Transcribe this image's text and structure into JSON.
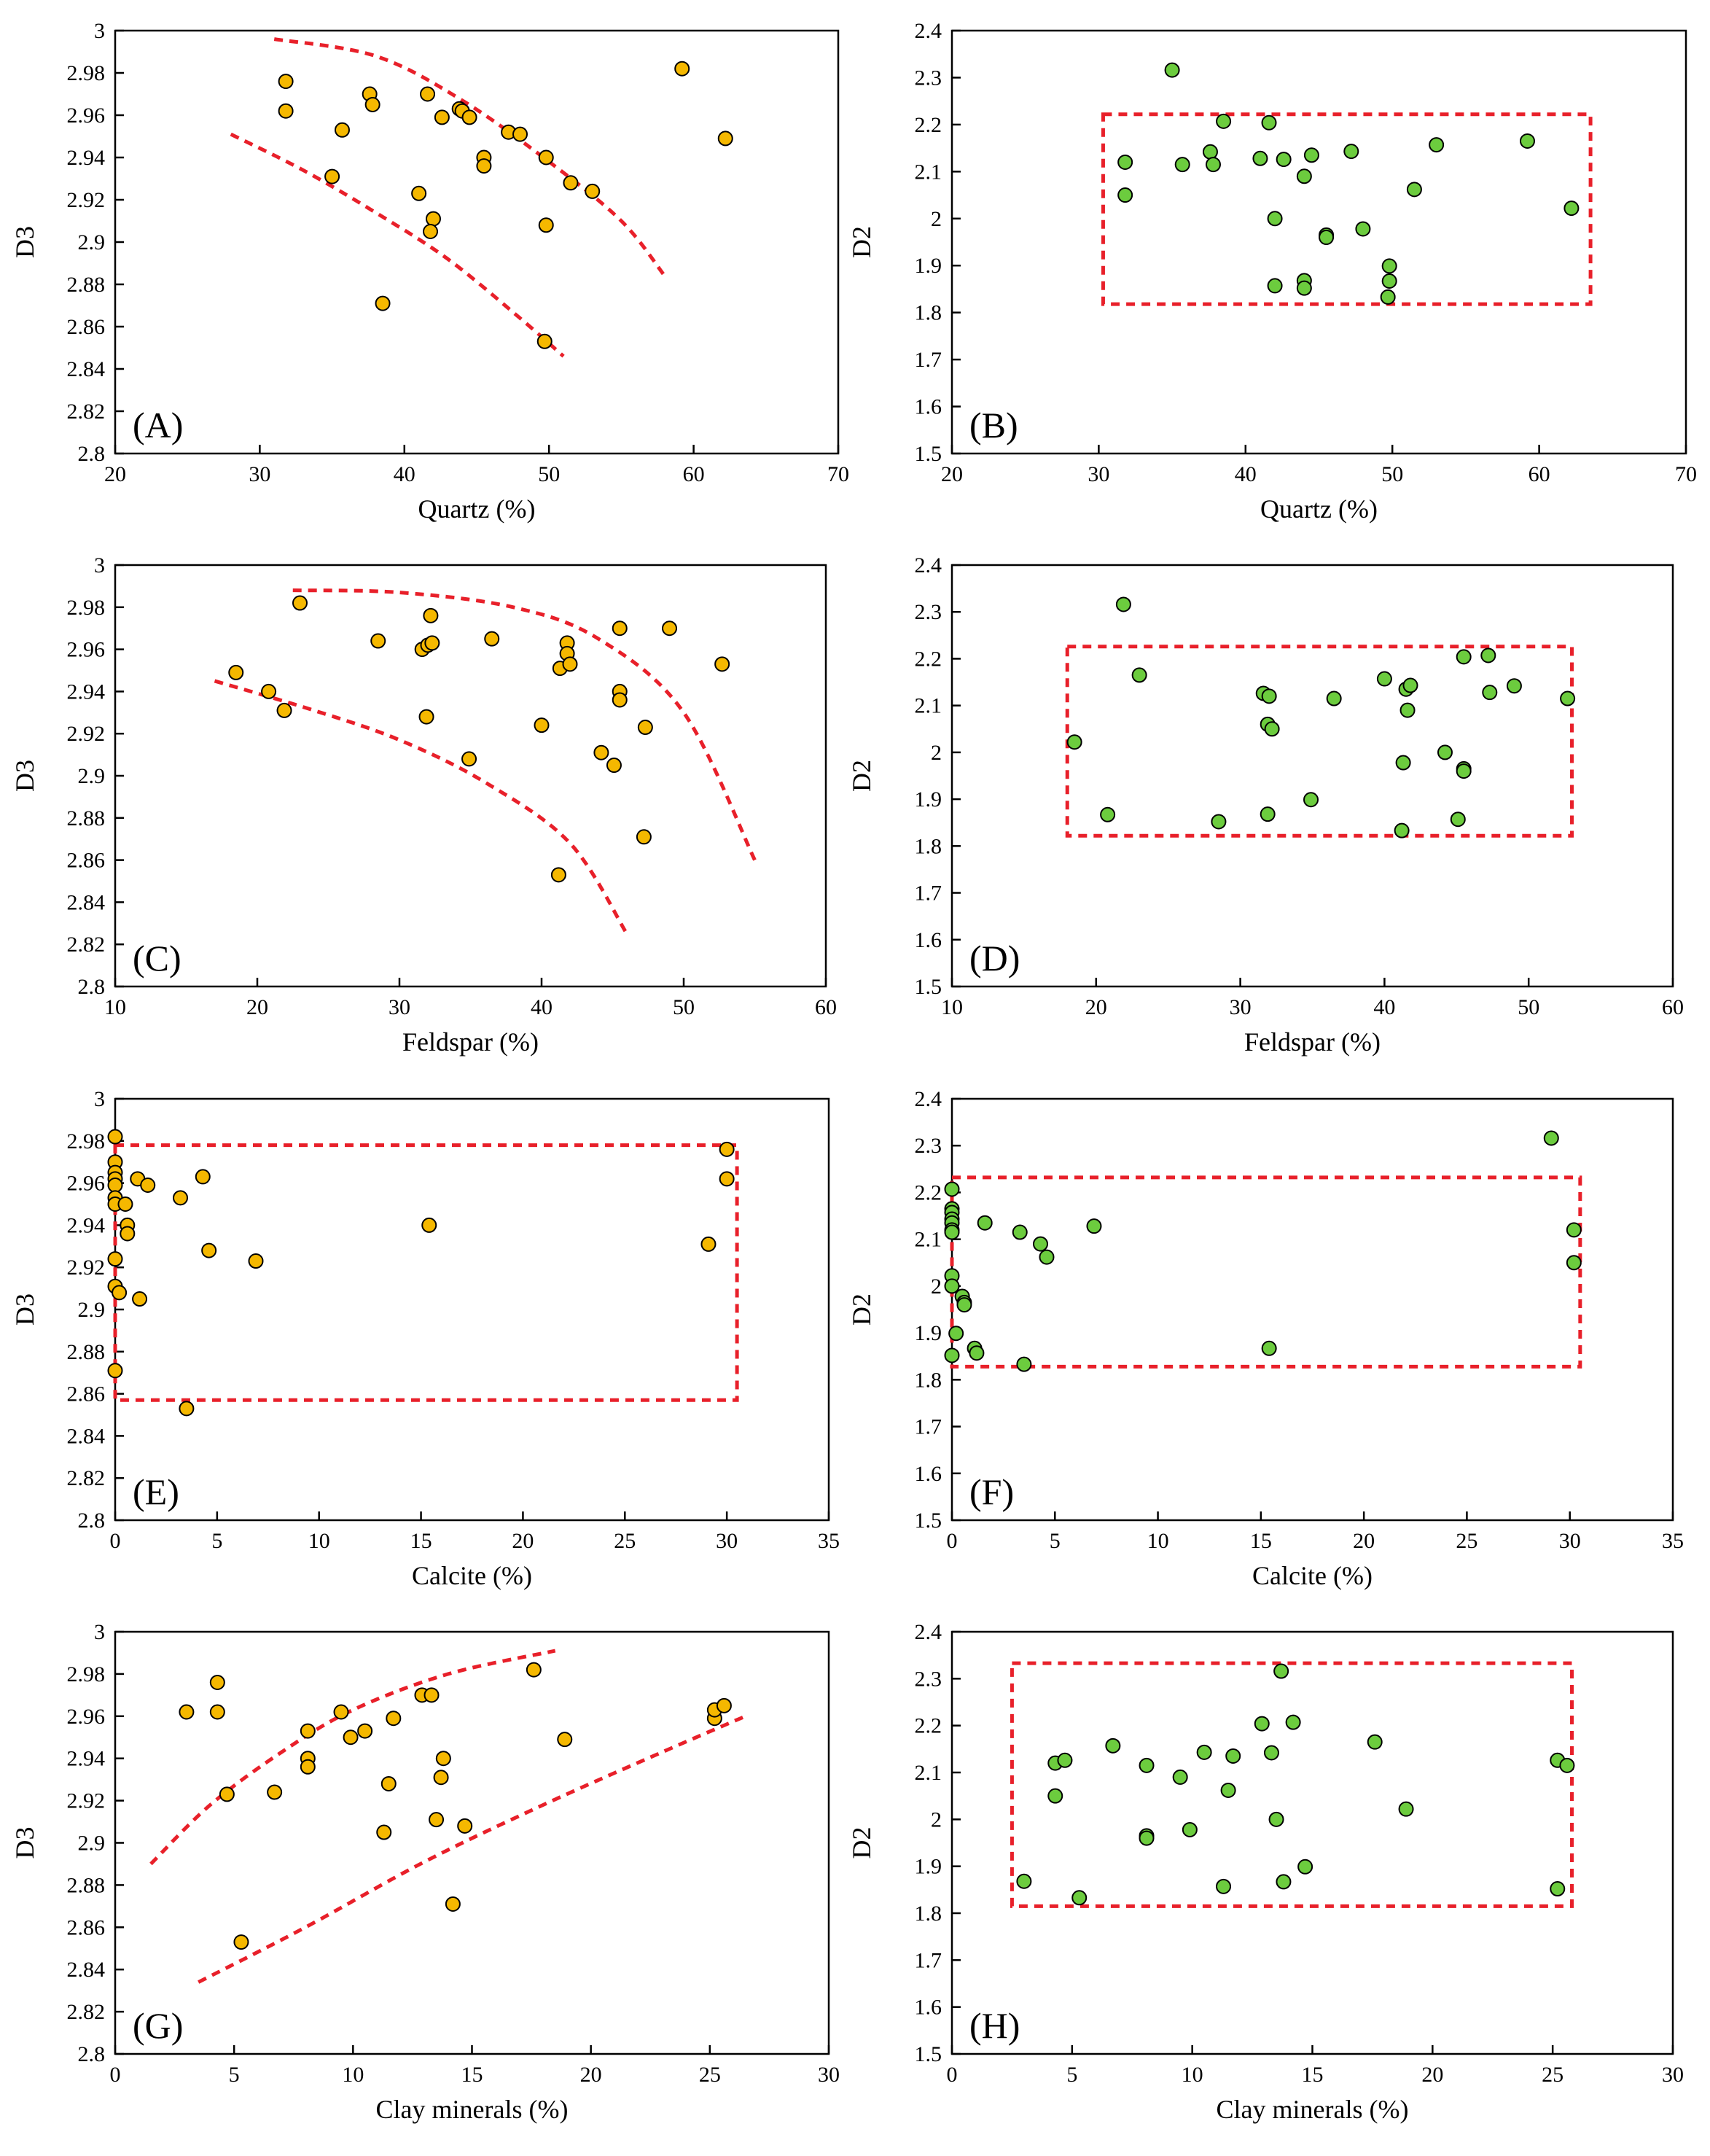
{
  "colors": {
    "yellow_point": "#f5b800",
    "green_point": "#6ccc3e",
    "guide_line": "#e8202a",
    "axis": "#000000"
  },
  "chart_data": [
    {
      "type": "scatter",
      "panel_label": "(A)",
      "xlabel": "Quartz (%)",
      "ylabel": "D3",
      "xlim": [
        20,
        70
      ],
      "ylim": [
        2.8,
        3.0
      ],
      "xticks": [
        "20",
        "30",
        "40",
        "50",
        "60",
        "70"
      ],
      "yticks": [
        "2.8",
        "2.82",
        "2.84",
        "2.86",
        "2.88",
        "2.9",
        "2.92",
        "2.94",
        "2.96",
        "2.98",
        "3"
      ],
      "point_color": "yellow",
      "points": [
        [
          31.8,
          2.976
        ],
        [
          31.8,
          2.962
        ],
        [
          35.7,
          2.953
        ],
        [
          35.0,
          2.931
        ],
        [
          37.6,
          2.97
        ],
        [
          37.8,
          2.965
        ],
        [
          41.6,
          2.97
        ],
        [
          42.6,
          2.959
        ],
        [
          43.8,
          2.963
        ],
        [
          44.0,
          2.962
        ],
        [
          44.5,
          2.959
        ],
        [
          47.2,
          2.952
        ],
        [
          48.0,
          2.951
        ],
        [
          45.5,
          2.94
        ],
        [
          45.5,
          2.936
        ],
        [
          49.8,
          2.94
        ],
        [
          51.5,
          2.928
        ],
        [
          53.0,
          2.924
        ],
        [
          41.0,
          2.923
        ],
        [
          42.0,
          2.911
        ],
        [
          41.8,
          2.905
        ],
        [
          49.8,
          2.908
        ],
        [
          38.5,
          2.871
        ],
        [
          49.7,
          2.853
        ],
        [
          59.2,
          2.982
        ],
        [
          62.2,
          2.949
        ]
      ],
      "guides": [
        {
          "kind": "curve",
          "points": [
            [
              31,
              2.996
            ],
            [
              38,
              2.988
            ],
            [
              44,
              2.967
            ],
            [
              50,
              2.938
            ],
            [
              55,
              2.91
            ],
            [
              58,
              2.884
            ]
          ]
        },
        {
          "kind": "curve",
          "points": [
            [
              28,
              2.951
            ],
            [
              33,
              2.934
            ],
            [
              38,
              2.914
            ],
            [
              43,
              2.892
            ],
            [
              48,
              2.864
            ],
            [
              51,
              2.846
            ]
          ]
        }
      ]
    },
    {
      "type": "scatter",
      "panel_label": "(B)",
      "xlabel": "Quartz (%)",
      "ylabel": "D2",
      "xlim": [
        20,
        70
      ],
      "ylim": [
        1.5,
        2.4
      ],
      "xticks": [
        "20",
        "30",
        "40",
        "50",
        "60",
        "70"
      ],
      "yticks": [
        "1.5",
        "1.6",
        "1.7",
        "1.8",
        "1.9",
        "2",
        "2.1",
        "2.2",
        "2.3",
        "2.4"
      ],
      "point_color": "green",
      "points": [
        [
          35.0,
          2.316
        ],
        [
          31.8,
          2.12
        ],
        [
          31.8,
          2.05
        ],
        [
          35.7,
          2.115
        ],
        [
          37.6,
          2.142
        ],
        [
          37.8,
          2.115
        ],
        [
          38.5,
          2.207
        ],
        [
          41.0,
          2.128
        ],
        [
          41.6,
          2.204
        ],
        [
          42.0,
          2.0
        ],
        [
          42.6,
          2.126
        ],
        [
          44.0,
          2.09
        ],
        [
          44.5,
          2.135
        ],
        [
          47.2,
          2.143
        ],
        [
          45.5,
          1.965
        ],
        [
          45.5,
          1.96
        ],
        [
          48.0,
          1.978
        ],
        [
          51.5,
          2.062
        ],
        [
          53.0,
          2.157
        ],
        [
          59.2,
          2.165
        ],
        [
          62.2,
          2.022
        ],
        [
          42.0,
          1.857
        ],
        [
          44.0,
          1.868
        ],
        [
          44.0,
          1.852
        ],
        [
          49.8,
          1.899
        ],
        [
          49.8,
          1.867
        ],
        [
          49.7,
          1.833
        ]
      ],
      "guides": [
        {
          "kind": "rect",
          "x": [
            30.3,
            63.5
          ],
          "y": [
            1.818,
            2.222
          ]
        }
      ]
    },
    {
      "type": "scatter",
      "panel_label": "(C)",
      "xlabel": "Feldspar (%)",
      "ylabel": "D3",
      "xlim": [
        10,
        60
      ],
      "ylim": [
        2.8,
        3.0
      ],
      "xticks": [
        "10",
        "20",
        "30",
        "40",
        "50",
        "60"
      ],
      "yticks": [
        "2.8",
        "2.82",
        "2.84",
        "2.86",
        "2.88",
        "2.9",
        "2.92",
        "2.94",
        "2.96",
        "2.98",
        "3"
      ],
      "point_color": "yellow",
      "points": [
        [
          18.5,
          2.949
        ],
        [
          20.8,
          2.94
        ],
        [
          21.9,
          2.931
        ],
        [
          23.0,
          2.982
        ],
        [
          28.5,
          2.964
        ],
        [
          31.6,
          2.96
        ],
        [
          32.0,
          2.962
        ],
        [
          32.3,
          2.963
        ],
        [
          32.2,
          2.976
        ],
        [
          31.9,
          2.928
        ],
        [
          34.9,
          2.908
        ],
        [
          36.5,
          2.965
        ],
        [
          40.0,
          2.924
        ],
        [
          41.3,
          2.951
        ],
        [
          41.8,
          2.963
        ],
        [
          41.8,
          2.958
        ],
        [
          42.0,
          2.953
        ],
        [
          44.2,
          2.911
        ],
        [
          45.1,
          2.905
        ],
        [
          45.5,
          2.97
        ],
        [
          45.5,
          2.94
        ],
        [
          45.5,
          2.936
        ],
        [
          47.3,
          2.923
        ],
        [
          49.0,
          2.97
        ],
        [
          52.7,
          2.953
        ],
        [
          47.2,
          2.871
        ],
        [
          41.2,
          2.853
        ]
      ],
      "guides": [
        {
          "kind": "curve",
          "points": [
            [
              22.5,
              2.988
            ],
            [
              30,
              2.987
            ],
            [
              38,
              2.98
            ],
            [
              44,
              2.965
            ],
            [
              50,
              2.93
            ],
            [
              55,
              2.86
            ]
          ]
        },
        {
          "kind": "curve",
          "points": [
            [
              17,
              2.945
            ],
            [
              24,
              2.931
            ],
            [
              30,
              2.917
            ],
            [
              36,
              2.897
            ],
            [
              42,
              2.868
            ],
            [
              46,
              2.825
            ]
          ]
        }
      ]
    },
    {
      "type": "scatter",
      "panel_label": "(D)",
      "xlabel": "Feldspar (%)",
      "ylabel": "D2",
      "xlim": [
        10,
        60
      ],
      "ylim": [
        1.5,
        2.4
      ],
      "xticks": [
        "10",
        "20",
        "30",
        "40",
        "50",
        "60"
      ],
      "yticks": [
        "1.5",
        "1.6",
        "1.7",
        "1.8",
        "1.9",
        "2",
        "2.1",
        "2.2",
        "2.3",
        "2.4"
      ],
      "point_color": "green",
      "points": [
        [
          21.9,
          2.316
        ],
        [
          18.5,
          2.022
        ],
        [
          23.0,
          2.165
        ],
        [
          20.8,
          1.867
        ],
        [
          28.5,
          1.852
        ],
        [
          31.6,
          2.126
        ],
        [
          32.0,
          2.12
        ],
        [
          31.9,
          2.06
        ],
        [
          32.2,
          2.05
        ],
        [
          31.9,
          1.868
        ],
        [
          34.9,
          1.899
        ],
        [
          36.5,
          2.115
        ],
        [
          40.0,
          2.157
        ],
        [
          41.3,
          1.978
        ],
        [
          41.5,
          2.135
        ],
        [
          41.8,
          2.143
        ],
        [
          41.6,
          2.09
        ],
        [
          41.2,
          1.833
        ],
        [
          44.2,
          2.0
        ],
        [
          45.1,
          1.857
        ],
        [
          45.5,
          1.965
        ],
        [
          45.5,
          1.96
        ],
        [
          45.5,
          2.204
        ],
        [
          47.2,
          2.207
        ],
        [
          47.3,
          2.128
        ],
        [
          49.0,
          2.142
        ],
        [
          52.7,
          2.115
        ]
      ],
      "guides": [
        {
          "kind": "rect",
          "x": [
            18,
            53
          ],
          "y": [
            1.822,
            2.226
          ]
        }
      ]
    },
    {
      "type": "scatter",
      "panel_label": "(E)",
      "xlabel": "Calcite (%)",
      "ylabel": "D3",
      "xlim": [
        0,
        35
      ],
      "ylim": [
        2.8,
        3.0
      ],
      "xticks": [
        "0",
        "5",
        "10",
        "15",
        "20",
        "25",
        "30",
        "35"
      ],
      "yticks": [
        "2.8",
        "2.82",
        "2.84",
        "2.86",
        "2.88",
        "2.9",
        "2.92",
        "2.94",
        "2.96",
        "2.98",
        "3"
      ],
      "point_color": "yellow",
      "points": [
        [
          0,
          2.982
        ],
        [
          0,
          2.97
        ],
        [
          0,
          2.965
        ],
        [
          0,
          2.962
        ],
        [
          0,
          2.959
        ],
        [
          0,
          2.953
        ],
        [
          0,
          2.95
        ],
        [
          0,
          2.924
        ],
        [
          0,
          2.911
        ],
        [
          0,
          2.871
        ],
        [
          0.2,
          2.908
        ],
        [
          0.5,
          2.95
        ],
        [
          0.6,
          2.94
        ],
        [
          0.6,
          2.936
        ],
        [
          1.1,
          2.962
        ],
        [
          1.2,
          2.905
        ],
        [
          1.6,
          2.959
        ],
        [
          3.2,
          2.953
        ],
        [
          4.3,
          2.963
        ],
        [
          4.6,
          2.928
        ],
        [
          6.9,
          2.923
        ],
        [
          15.4,
          2.94
        ],
        [
          29.1,
          2.931
        ],
        [
          30.0,
          2.976
        ],
        [
          30.0,
          2.962
        ],
        [
          3.5,
          2.853
        ]
      ],
      "guides": [
        {
          "kind": "rect",
          "x": [
            0,
            30.5
          ],
          "y": [
            2.857,
            2.978
          ]
        }
      ]
    },
    {
      "type": "scatter",
      "panel_label": "(F)",
      "xlabel": "Calcite (%)",
      "ylabel": "D2",
      "xlim": [
        0,
        35
      ],
      "ylim": [
        1.5,
        2.4
      ],
      "xticks": [
        "0",
        "5",
        "10",
        "15",
        "20",
        "25",
        "30",
        "35"
      ],
      "yticks": [
        "1.5",
        "1.6",
        "1.7",
        "1.8",
        "1.9",
        "2",
        "2.1",
        "2.2",
        "2.3",
        "2.4"
      ],
      "point_color": "green",
      "points": [
        [
          0,
          2.207
        ],
        [
          0,
          2.165
        ],
        [
          0,
          2.157
        ],
        [
          0,
          2.143
        ],
        [
          0,
          2.135
        ],
        [
          0,
          2.12
        ],
        [
          0,
          2.115
        ],
        [
          0,
          2.022
        ],
        [
          0,
          2.0
        ],
        [
          0,
          1.852
        ],
        [
          0.2,
          1.899
        ],
        [
          0.5,
          1.978
        ],
        [
          0.6,
          1.965
        ],
        [
          0.6,
          1.96
        ],
        [
          1.1,
          1.867
        ],
        [
          1.2,
          1.857
        ],
        [
          1.6,
          2.135
        ],
        [
          3.3,
          2.115
        ],
        [
          3.5,
          1.833
        ],
        [
          4.3,
          2.09
        ],
        [
          4.6,
          2.062
        ],
        [
          6.9,
          2.128
        ],
        [
          15.4,
          1.867
        ],
        [
          29.1,
          2.316
        ],
        [
          30.2,
          2.12
        ],
        [
          30.2,
          2.05
        ]
      ],
      "guides": [
        {
          "kind": "rect",
          "x": [
            0,
            30.5
          ],
          "y": [
            1.828,
            2.232
          ]
        }
      ]
    },
    {
      "type": "scatter",
      "panel_label": "(G)",
      "xlabel": "Clay minerals (%)",
      "ylabel": "D3",
      "xlim": [
        0,
        30
      ],
      "ylim": [
        2.8,
        3.0
      ],
      "xticks": [
        "0",
        "5",
        "10",
        "15",
        "20",
        "25",
        "30"
      ],
      "yticks": [
        "2.8",
        "2.82",
        "2.84",
        "2.86",
        "2.88",
        "2.9",
        "2.92",
        "2.94",
        "2.96",
        "2.98",
        "3"
      ],
      "point_color": "yellow",
      "points": [
        [
          3.0,
          2.962
        ],
        [
          4.3,
          2.976
        ],
        [
          4.3,
          2.962
        ],
        [
          4.7,
          2.923
        ],
        [
          5.3,
          2.853
        ],
        [
          6.7,
          2.924
        ],
        [
          8.1,
          2.953
        ],
        [
          8.1,
          2.94
        ],
        [
          8.1,
          2.936
        ],
        [
          9.5,
          2.962
        ],
        [
          9.9,
          2.95
        ],
        [
          10.5,
          2.953
        ],
        [
          11.3,
          2.905
        ],
        [
          11.5,
          2.928
        ],
        [
          11.7,
          2.959
        ],
        [
          12.9,
          2.97
        ],
        [
          13.3,
          2.97
        ],
        [
          13.5,
          2.911
        ],
        [
          13.7,
          2.931
        ],
        [
          13.8,
          2.94
        ],
        [
          14.2,
          2.871
        ],
        [
          14.7,
          2.908
        ],
        [
          17.6,
          2.982
        ],
        [
          18.9,
          2.949
        ],
        [
          25.2,
          2.959
        ],
        [
          25.2,
          2.963
        ],
        [
          25.6,
          2.965
        ]
      ],
      "guides": [
        {
          "kind": "curve",
          "points": [
            [
              1.5,
              2.89
            ],
            [
              4,
              2.918
            ],
            [
              7,
              2.943
            ],
            [
              10,
              2.963
            ],
            [
              14,
              2.98
            ],
            [
              18.5,
              2.991
            ]
          ]
        },
        {
          "kind": "curve",
          "points": [
            [
              3.5,
              2.834
            ],
            [
              8,
              2.86
            ],
            [
              13,
              2.891
            ],
            [
              18,
              2.918
            ],
            [
              23,
              2.943
            ],
            [
              26.5,
              2.96
            ]
          ]
        }
      ]
    },
    {
      "type": "scatter",
      "panel_label": "(H)",
      "xlabel": "Clay minerals (%)",
      "ylabel": "D2",
      "xlim": [
        0,
        30
      ],
      "ylim": [
        1.5,
        2.4
      ],
      "xticks": [
        "0",
        "5",
        "10",
        "15",
        "20",
        "25",
        "30"
      ],
      "yticks": [
        "1.5",
        "1.6",
        "1.7",
        "1.8",
        "1.9",
        "2",
        "2.1",
        "2.2",
        "2.3",
        "2.4"
      ],
      "point_color": "green",
      "points": [
        [
          3.0,
          1.868
        ],
        [
          4.3,
          2.12
        ],
        [
          4.3,
          2.05
        ],
        [
          4.7,
          2.126
        ],
        [
          5.3,
          1.833
        ],
        [
          6.7,
          2.157
        ],
        [
          8.1,
          2.115
        ],
        [
          8.1,
          1.965
        ],
        [
          8.1,
          1.96
        ],
        [
          9.5,
          2.09
        ],
        [
          9.9,
          1.978
        ],
        [
          10.5,
          2.143
        ],
        [
          11.3,
          1.857
        ],
        [
          11.5,
          2.062
        ],
        [
          11.7,
          2.135
        ],
        [
          12.9,
          2.204
        ],
        [
          13.3,
          2.142
        ],
        [
          13.5,
          2.0
        ],
        [
          13.7,
          2.316
        ],
        [
          13.8,
          1.867
        ],
        [
          14.2,
          2.207
        ],
        [
          14.7,
          1.899
        ],
        [
          17.6,
          2.165
        ],
        [
          18.9,
          2.022
        ],
        [
          25.2,
          1.852
        ],
        [
          25.2,
          2.126
        ],
        [
          25.6,
          2.115
        ]
      ],
      "guides": [
        {
          "kind": "rect",
          "x": [
            2.5,
            25.8
          ],
          "y": [
            1.815,
            2.333
          ]
        }
      ]
    }
  ]
}
